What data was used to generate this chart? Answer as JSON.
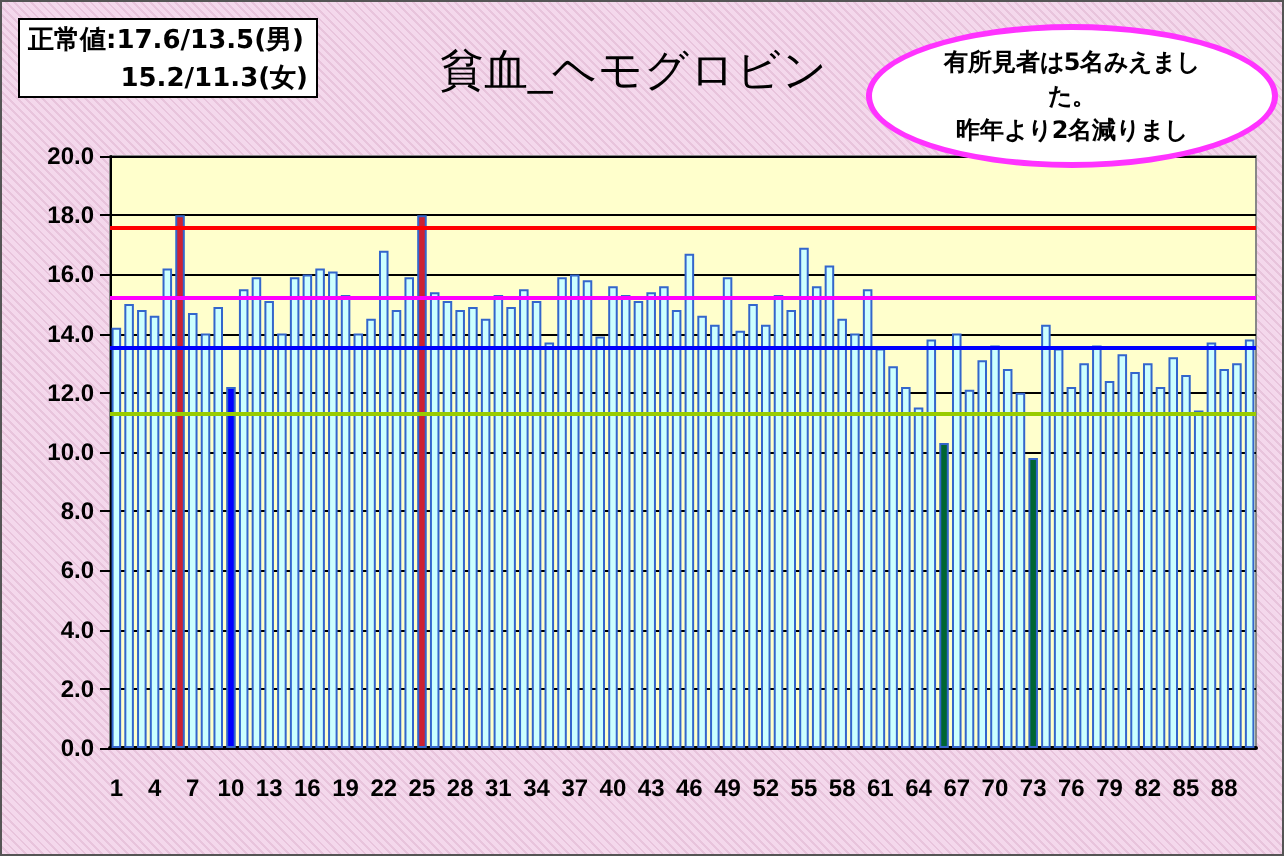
{
  "chart_data": {
    "type": "bar",
    "title": "貧血_ヘモグロビン",
    "categories": [
      "1",
      null,
      null,
      "4",
      null,
      null,
      "7",
      null,
      null,
      "10",
      null,
      null,
      "13",
      null,
      null,
      "16",
      null,
      null,
      "19",
      null,
      null,
      "22",
      null,
      null,
      "25",
      null,
      null,
      "28",
      null,
      null,
      "31",
      null,
      null,
      "34",
      null,
      null,
      "37",
      null,
      null,
      "40",
      null,
      null,
      "43",
      null,
      null,
      "46",
      null,
      null,
      "49",
      null,
      null,
      "52",
      null,
      null,
      "55",
      null,
      null,
      "58",
      null,
      null,
      "61",
      null,
      null,
      "64",
      null,
      null,
      "67",
      null,
      null,
      "70",
      null,
      null,
      "73",
      null,
      null,
      "76",
      null,
      null,
      "79",
      null,
      null,
      "82",
      null,
      null,
      "85",
      null,
      null,
      "88",
      null,
      null
    ],
    "values": [
      14.2,
      15.0,
      14.8,
      14.6,
      16.2,
      18.0,
      14.7,
      14.0,
      14.9,
      12.2,
      15.5,
      15.9,
      15.1,
      14.0,
      15.9,
      16.0,
      16.2,
      16.1,
      15.3,
      14.0,
      14.5,
      16.8,
      14.8,
      15.9,
      18.0,
      15.4,
      15.1,
      14.8,
      14.9,
      14.5,
      15.3,
      14.9,
      15.5,
      15.1,
      13.7,
      15.9,
      16.0,
      15.8,
      13.9,
      15.6,
      15.3,
      15.1,
      15.4,
      15.6,
      14.8,
      16.7,
      14.6,
      14.3,
      15.9,
      14.1,
      15.0,
      14.3,
      15.3,
      14.8,
      16.9,
      15.6,
      16.3,
      14.5,
      14.0,
      15.5,
      13.5,
      12.9,
      12.2,
      11.5,
      13.8,
      10.3,
      14.0,
      12.1,
      13.1,
      13.6,
      12.8,
      12.0,
      9.8,
      14.3,
      13.5,
      12.2,
      13.0,
      13.6,
      12.4,
      13.3,
      12.7,
      13.0,
      12.2,
      13.2,
      12.6,
      11.4,
      13.7,
      12.8,
      13.0,
      13.8
    ],
    "colors": [
      "#ccffff",
      "#ccffff",
      "#ccffff",
      "#ccffff",
      "#ccffff",
      "#cc2233",
      "#ccffff",
      "#ccffff",
      "#ccffff",
      "#0000ff",
      "#ccffff",
      "#ccffff",
      "#ccffff",
      "#ccffff",
      "#ccffff",
      "#ccffff",
      "#ccffff",
      "#ccffff",
      "#ccffff",
      "#ccffff",
      "#ccffff",
      "#ccffff",
      "#ccffff",
      "#ccffff",
      "#cc2233",
      "#ccffff",
      "#ccffff",
      "#ccffff",
      "#ccffff",
      "#ccffff",
      "#ccffff",
      "#ccffff",
      "#ccffff",
      "#ccffff",
      "#ccffff",
      "#ccffff",
      "#ccffff",
      "#ccffff",
      "#ccffff",
      "#ccffff",
      "#ccffff",
      "#ccffff",
      "#ccffff",
      "#ccffff",
      "#ccffff",
      "#ccffff",
      "#ccffff",
      "#ccffff",
      "#ccffff",
      "#ccffff",
      "#ccffff",
      "#ccffff",
      "#ccffff",
      "#ccffff",
      "#ccffff",
      "#ccffff",
      "#ccffff",
      "#ccffff",
      "#ccffff",
      "#ccffff",
      "#ccffff",
      "#ccffff",
      "#ccffff",
      "#ccffff",
      "#ccffff",
      "#006633",
      "#ccffff",
      "#ccffff",
      "#ccffff",
      "#ccffff",
      "#ccffff",
      "#ccffff",
      "#006633",
      "#ccffff",
      "#ccffff",
      "#ccffff",
      "#ccffff",
      "#ccffff",
      "#ccffff",
      "#ccffff",
      "#ccffff",
      "#ccffff",
      "#ccffff",
      "#ccffff",
      "#ccffff",
      "#ccffff",
      "#ccffff",
      "#ccffff",
      "#ccffff",
      "#ccffff"
    ],
    "ylim": [
      0,
      20
    ],
    "yticks": [
      {
        "value": 0,
        "label": "0.0"
      },
      {
        "value": 2,
        "label": "2.0"
      },
      {
        "value": 4,
        "label": "4.0"
      },
      {
        "value": 6,
        "label": "6.0"
      },
      {
        "value": 8,
        "label": "8.0"
      },
      {
        "value": 10,
        "label": "10.0"
      },
      {
        "value": 12,
        "label": "12.0"
      },
      {
        "value": 14,
        "label": "14.0"
      },
      {
        "value": 16,
        "label": "16.0"
      },
      {
        "value": 18,
        "label": "18.0"
      },
      {
        "value": 20,
        "label": "20.0"
      }
    ],
    "grid": "y",
    "ref_lines": [
      {
        "axis": "y",
        "value": 17.6,
        "color": "#ff0000"
      },
      {
        "axis": "y",
        "value": 15.2,
        "color": "#ff00ff"
      },
      {
        "axis": "y",
        "value": 13.5,
        "color": "#0000ff"
      },
      {
        "axis": "y",
        "value": 11.3,
        "color": "#99cc00"
      }
    ],
    "annotations": [
      "正常値:17.6/13.5(男)",
      "15.2/11.3(女)",
      "有所見者は5名みえました。",
      "昨年より2名減りまし"
    ]
  }
}
